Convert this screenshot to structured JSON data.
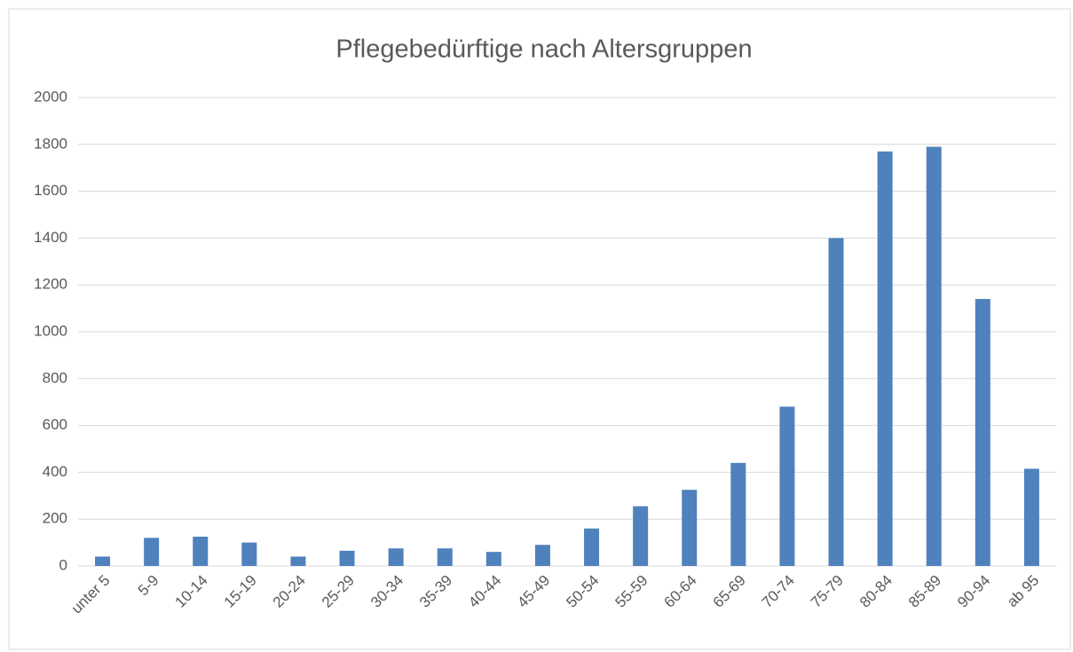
{
  "chart_data": {
    "type": "bar",
    "title": "Pflegebedürftige nach Altersgruppen",
    "categories": [
      "unter 5",
      "5-9",
      "10-14",
      "15-19",
      "20-24",
      "25-29",
      "30-34",
      "35-39",
      "40-44",
      "45-49",
      "50-54",
      "55-59",
      "60-64",
      "65-69",
      "70-74",
      "75-79",
      "80-84",
      "85-89",
      "90-94",
      "ab 95"
    ],
    "values": [
      40,
      120,
      125,
      100,
      40,
      65,
      75,
      75,
      60,
      90,
      160,
      255,
      325,
      440,
      680,
      1400,
      1770,
      1790,
      1140,
      415
    ],
    "color": "#4f81bd",
    "ylim": [
      0,
      2000
    ],
    "yticks": [
      0,
      200,
      400,
      600,
      800,
      1000,
      1200,
      1400,
      1600,
      1800,
      2000
    ],
    "grid": true
  }
}
